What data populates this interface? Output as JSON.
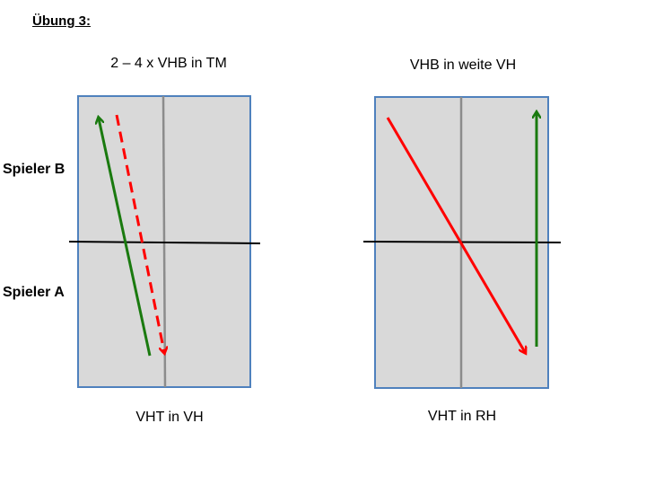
{
  "slide": {
    "heading": "Übung 3:",
    "player_b_label": "Spieler B",
    "player_a_label": "Spieler A"
  },
  "diagrams": {
    "left": {
      "top_caption": "2 – 4 x VHB in TM",
      "bottom_caption": "VHT in VH"
    },
    "right": {
      "top_caption": "VHB in weite VH",
      "bottom_caption": "VHT in RH"
    }
  },
  "colors": {
    "table_fill": "#d9d9d9",
    "table_border": "#4f81bd",
    "center_line": "#8c8c8c",
    "net_line": "#000000",
    "green_arrow": "#1a7a0f",
    "red_arrow": "#ff0000"
  }
}
